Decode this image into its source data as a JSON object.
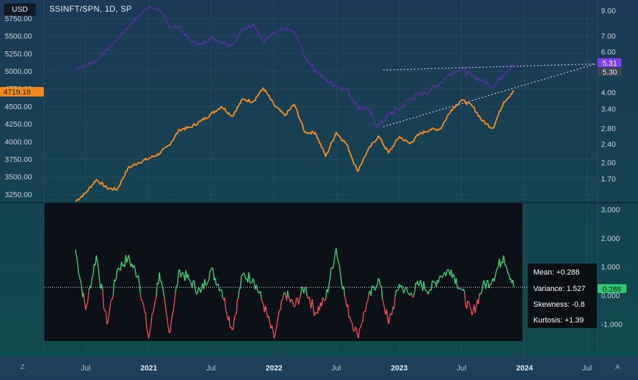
{
  "header": {
    "currency_button": "USD",
    "symbol_title": "SSINFT/SPN, 1D, SP"
  },
  "corner": {
    "left": "Z",
    "right": "A"
  },
  "colors": {
    "background_top": "#1c3a57",
    "background_bottom": "#0f4a4b",
    "ratio_line": "#5a2fa0",
    "spx_line": "#f08a1e",
    "osc_positive": "#3fd07a",
    "osc_negative": "#ef4e55",
    "osc_panel": "#0c1117",
    "ratio_badge": "#7e3df2",
    "spx_badge": "#f08a1e"
  },
  "price_badges": {
    "spx_last": "4719.18",
    "ratio_last": "5.31",
    "ratio_prev": "5.30"
  },
  "stats_tooltip": {
    "mean": "Mean: +0.288",
    "variance": "Variance: 1.527",
    "skewness": "Skewness: -0.8",
    "kurtosis": "Kurtosis: +1.39"
  },
  "osc_badge": "0.288",
  "chart_data": [
    {
      "type": "line",
      "title": "SSINFT/SPN, 1D, SP",
      "x_tick_labels": [
        "Jul",
        "2021",
        "Jul",
        "2022",
        "Jul",
        "2023",
        "Jul",
        "2024",
        "Jul"
      ],
      "x_range": [
        "2020-03",
        "2024-08"
      ],
      "left_axis_ticks": [
        "5750.00",
        "5500.00",
        "5250.00",
        "5000.00",
        "4750.00",
        "4500.00",
        "4250.00",
        "4000.00",
        "3750.00",
        "3500.00",
        "3250.00"
      ],
      "right_axis_ticks": [
        "9.00",
        "7.00",
        "6.00",
        "5.00",
        "4.00",
        "3.40",
        "2.80",
        "2.40",
        "2.00",
        "1.70"
      ],
      "right_axis_scale": "log",
      "series": [
        {
          "axis": "right",
          "points": [
            [
              "2020-06-01",
              5.1
            ],
            [
              "2020-07-01",
              5.2
            ],
            [
              "2020-08-01",
              5.5
            ],
            [
              "2020-09-01",
              6.1
            ],
            [
              "2020-10-01",
              6.8
            ],
            [
              "2020-11-01",
              7.6
            ],
            [
              "2020-12-01",
              8.5
            ],
            [
              "2021-01-01",
              9.3
            ],
            [
              "2021-02-01",
              9.1
            ],
            [
              "2021-03-01",
              7.7
            ],
            [
              "2021-04-01",
              7.6
            ],
            [
              "2021-05-01",
              6.7
            ],
            [
              "2021-06-01",
              6.4
            ],
            [
              "2021-07-01",
              6.9
            ],
            [
              "2021-08-01",
              6.6
            ],
            [
              "2021-09-01",
              6.4
            ],
            [
              "2021-10-01",
              7.4
            ],
            [
              "2021-11-01",
              7.9
            ],
            [
              "2021-12-01",
              6.6
            ],
            [
              "2022-01-01",
              7.2
            ],
            [
              "2022-02-01",
              7.5
            ],
            [
              "2022-03-01",
              7.3
            ],
            [
              "2022-04-01",
              5.7
            ],
            [
              "2022-05-01",
              5.0
            ],
            [
              "2022-06-01",
              4.5
            ],
            [
              "2022-07-01",
              4.3
            ],
            [
              "2022-08-01",
              4.1
            ],
            [
              "2022-09-01",
              3.5
            ],
            [
              "2022-10-01",
              3.4
            ],
            [
              "2022-11-01",
              2.85
            ],
            [
              "2022-12-01",
              3.2
            ],
            [
              "2023-01-01",
              3.4
            ],
            [
              "2023-02-01",
              3.75
            ],
            [
              "2023-03-01",
              3.9
            ],
            [
              "2023-04-01",
              4.1
            ],
            [
              "2023-05-01",
              4.4
            ],
            [
              "2023-06-01",
              4.85
            ],
            [
              "2023-07-01",
              5.1
            ],
            [
              "2023-08-01",
              4.7
            ],
            [
              "2023-09-01",
              4.5
            ],
            [
              "2023-10-01",
              4.25
            ],
            [
              "2023-11-01",
              4.8
            ],
            [
              "2023-12-01",
              5.31
            ]
          ]
        },
        {
          "axis": "left",
          "points": [
            [
              "2020-06-01",
              3150
            ],
            [
              "2020-07-01",
              3270
            ],
            [
              "2020-08-01",
              3460
            ],
            [
              "2020-09-01",
              3340
            ],
            [
              "2020-10-01",
              3320
            ],
            [
              "2020-11-01",
              3620
            ],
            [
              "2020-12-01",
              3700
            ],
            [
              "2021-01-01",
              3760
            ],
            [
              "2021-02-01",
              3830
            ],
            [
              "2021-03-01",
              3950
            ],
            [
              "2021-04-01",
              4170
            ],
            [
              "2021-05-01",
              4200
            ],
            [
              "2021-06-01",
              4290
            ],
            [
              "2021-07-01",
              4390
            ],
            [
              "2021-08-01",
              4500
            ],
            [
              "2021-09-01",
              4360
            ],
            [
              "2021-10-01",
              4600
            ],
            [
              "2021-11-01",
              4570
            ],
            [
              "2021-12-01",
              4760
            ],
            [
              "2022-01-01",
              4520
            ],
            [
              "2022-02-01",
              4370
            ],
            [
              "2022-03-01",
              4530
            ],
            [
              "2022-04-01",
              4130
            ],
            [
              "2022-05-01",
              4130
            ],
            [
              "2022-06-01",
              3790
            ],
            [
              "2022-07-01",
              4130
            ],
            [
              "2022-08-01",
              3960
            ],
            [
              "2022-09-01",
              3580
            ],
            [
              "2022-10-01",
              3870
            ],
            [
              "2022-11-01",
              4080
            ],
            [
              "2022-12-01",
              3840
            ],
            [
              "2023-01-01",
              4070
            ],
            [
              "2023-02-01",
              3970
            ],
            [
              "2023-03-01",
              4110
            ],
            [
              "2023-04-01",
              4170
            ],
            [
              "2023-05-01",
              4180
            ],
            [
              "2023-06-01",
              4450
            ],
            [
              "2023-07-01",
              4590
            ],
            [
              "2023-08-01",
              4510
            ],
            [
              "2023-09-01",
              4290
            ],
            [
              "2023-10-01",
              4190
            ],
            [
              "2023-11-01",
              4560
            ],
            [
              "2023-12-01",
              4719.18
            ]
          ]
        }
      ],
      "annotations": [
        "dotted trend line on upper highs",
        "dotted trend line on lower lows"
      ]
    },
    {
      "type": "line",
      "subtype": "oscillator",
      "y_axis_ticks": [
        "3.000",
        "2.000",
        "1.000",
        "0.000",
        "-1.000"
      ],
      "ylim": [
        -1.6,
        3.3
      ],
      "mean_line": 0.288,
      "series": [
        {
          "points": [
            [
              "2020-06-01",
              1.6
            ],
            [
              "2020-07-01",
              -0.5
            ],
            [
              "2020-08-01",
              1.4
            ],
            [
              "2020-09-01",
              -1.0
            ],
            [
              "2020-10-01",
              0.9
            ],
            [
              "2020-11-01",
              1.3
            ],
            [
              "2020-12-01",
              0.7
            ],
            [
              "2021-01-01",
              -1.5
            ],
            [
              "2021-02-01",
              0.8
            ],
            [
              "2021-03-01",
              -1.3
            ],
            [
              "2021-04-01",
              0.9
            ],
            [
              "2021-05-01",
              0.5
            ],
            [
              "2021-06-01",
              0.1
            ],
            [
              "2021-07-01",
              0.9
            ],
            [
              "2021-08-01",
              0.2
            ],
            [
              "2021-09-01",
              -1.2
            ],
            [
              "2021-10-01",
              0.7
            ],
            [
              "2021-11-01",
              0.6
            ],
            [
              "2021-12-01",
              -0.3
            ],
            [
              "2022-01-01",
              -1.5
            ],
            [
              "2022-02-01",
              0.1
            ],
            [
              "2022-03-01",
              -0.4
            ],
            [
              "2022-04-01",
              0.3
            ],
            [
              "2022-05-01",
              -0.6
            ],
            [
              "2022-06-01",
              -0.1
            ],
            [
              "2022-07-01",
              1.65
            ],
            [
              "2022-08-01",
              -0.4
            ],
            [
              "2022-09-01",
              -1.4
            ],
            [
              "2022-10-01",
              -0.2
            ],
            [
              "2022-11-01",
              0.6
            ],
            [
              "2022-12-01",
              -1.0
            ],
            [
              "2023-01-01",
              0.4
            ],
            [
              "2023-02-01",
              0.0
            ],
            [
              "2023-03-01",
              0.4
            ],
            [
              "2023-04-01",
              0.2
            ],
            [
              "2023-05-01",
              0.7
            ],
            [
              "2023-06-01",
              0.9
            ],
            [
              "2023-07-01",
              0.2
            ],
            [
              "2023-08-01",
              -0.7
            ],
            [
              "2023-09-01",
              0.3
            ],
            [
              "2023-10-01",
              0.6
            ],
            [
              "2023-11-01",
              1.4
            ],
            [
              "2023-12-01",
              0.288
            ]
          ]
        }
      ]
    }
  ]
}
